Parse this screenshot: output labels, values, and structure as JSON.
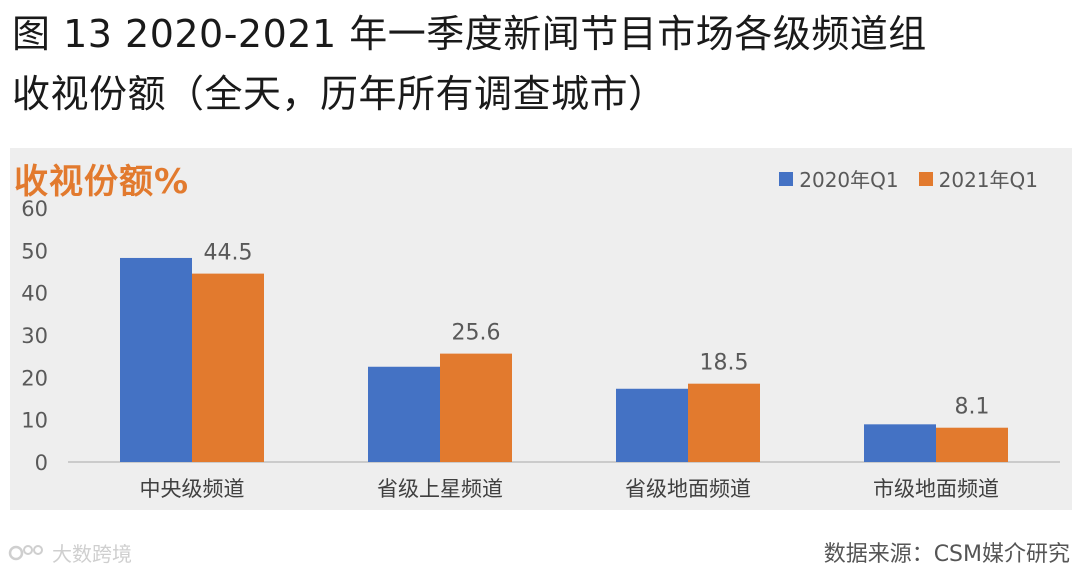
{
  "title_line1": "图 13 2020-2021 年一季度新闻节目市场各级频道组",
  "title_line2": "收视份额（全天，历年所有调查城市）",
  "source_text": "数据来源：CSM媒介研究",
  "watermark_text": "大数跨境",
  "colors": {
    "series_2020": "#4472c4",
    "series_2021": "#e27a2e",
    "panel_bg": "#eeeeee"
  },
  "chart_data": {
    "type": "bar",
    "ylabel": "收视份额%",
    "ylim": [
      0,
      60
    ],
    "yticks": [
      0,
      10,
      20,
      30,
      40,
      50,
      60
    ],
    "categories": [
      "中央级频道",
      "省级上星频道",
      "省级地面频道",
      "市级地面频道"
    ],
    "series": [
      {
        "name": "2020年Q1",
        "values": [
          48.2,
          22.5,
          17.3,
          8.9
        ],
        "color": "#4472c4"
      },
      {
        "name": "2021年Q1",
        "values": [
          44.5,
          25.6,
          18.5,
          8.1
        ],
        "color": "#e27a2e",
        "labels": [
          "44.5",
          "25.6",
          "18.5",
          "8.1"
        ]
      }
    ],
    "legend_position": "top-right",
    "grid": false
  }
}
